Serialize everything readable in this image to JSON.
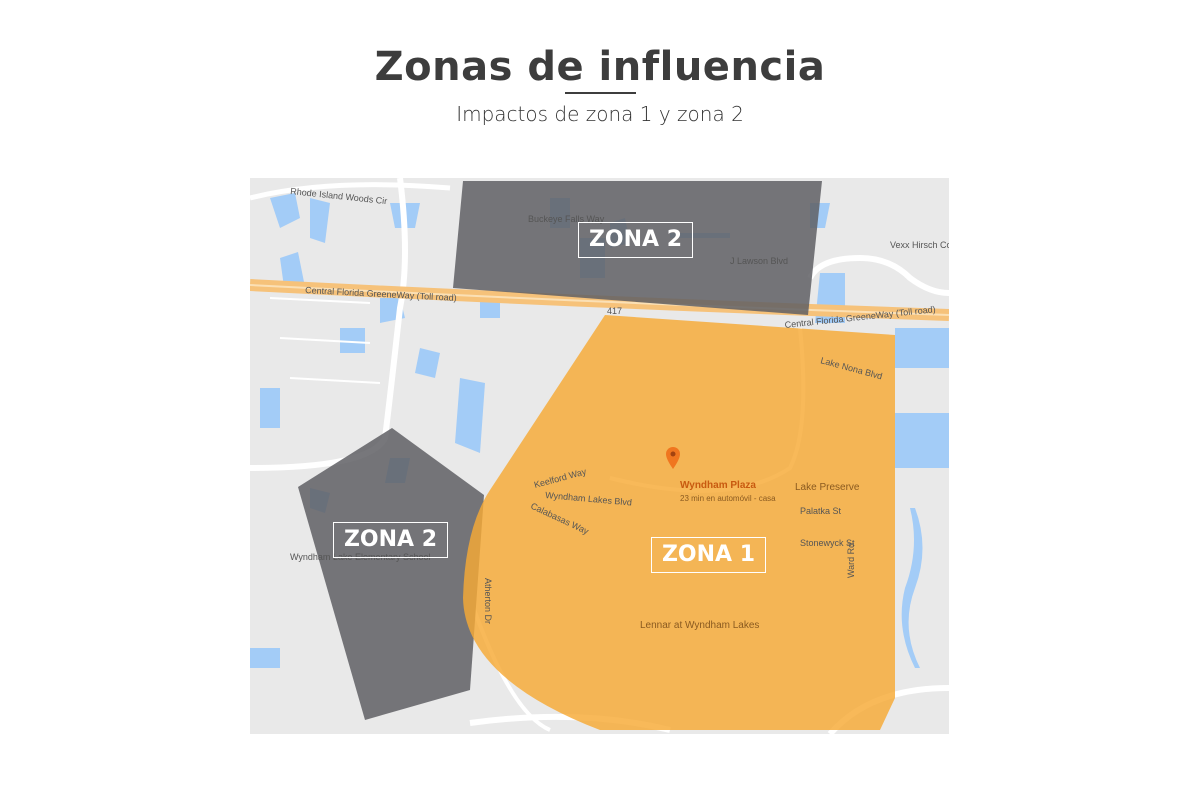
{
  "header": {
    "title": "Zonas de influencia",
    "subtitle": "Impactos de zona 1 y zona 2"
  },
  "map": {
    "zones": [
      {
        "id": "zona-2-north",
        "label": "ZONA 2",
        "color": "#5f5f64"
      },
      {
        "id": "zona-2-west",
        "label": "ZONA 2",
        "color": "#5f5f64"
      },
      {
        "id": "zona-1",
        "label": "ZONA 1",
        "color": "#f7a935"
      }
    ],
    "marker": {
      "icon": "map-pin-icon",
      "name": "Wyndham Plaza",
      "detail": "23 min en automóvil - casa",
      "color": "#f0761f"
    },
    "streets": [
      "Rhode Island Woods Cir",
      "Central Florida GreeneWay (Toll road)",
      "Buckeye Falls Way",
      "J Lawson Blvd",
      "Lake Nona Blvd",
      "Wyndham Lakes Blvd",
      "Keelford Way",
      "Calabasas Way",
      "Atherton Dr",
      "Palatka St",
      "Stonewyck St",
      "Ward Rd",
      "Lake Preserve",
      "Lennar at Wyndham Lakes",
      "Wyndham Lake Elementary School",
      "Vexx Hirsch Corp",
      "417"
    ],
    "colors": {
      "land": "#e9e9e9",
      "water": "#a3ccf7",
      "road": "#ffffff",
      "highway": "#f6c27a"
    }
  }
}
